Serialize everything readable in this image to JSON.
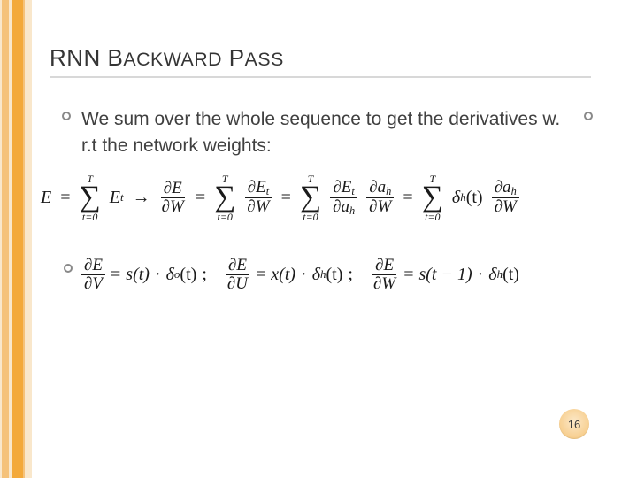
{
  "title_part1": "RNN B",
  "title_part2": "ACKWARD",
  "title_part3": " P",
  "title_part4": "ASS",
  "lead": "We sum over the whole sequence to get the derivatives w. r.t the network weights:",
  "eq": {
    "E": "E",
    "eq": "=",
    "arrow": "→",
    "sum_upper": "T",
    "sum_lower": "t=0",
    "E_t": "E",
    "sub_t": "t",
    "dE_dW_num": "∂E",
    "dE_dW_den": "∂W",
    "dEt_dW_num": "∂E",
    "dEt_dW_num_sub": "t",
    "dEt_dW_den": "∂W",
    "dEt_dah_num": "∂E",
    "dEt_dah_num_sub": "t",
    "dEt_dah_den": "∂a",
    "dEt_dah_den_sub": "h",
    "dah_dW_num": "∂a",
    "dah_dW_num_sub": "h",
    "dah_dW_den": "∂W",
    "delta": "δ",
    "sub_h": "h",
    "open": "(t)",
    "dE_dV_num": "∂E",
    "dE_dV_den": "∂V",
    "s_of_t": "s(t)",
    "dot": "·",
    "delta_o": "δ",
    "sub_o": "o",
    "semicolon": ";",
    "dE_dU_num": "∂E",
    "dE_dU_den": "∂U",
    "x_of_t": "x(t)",
    "s_of_tm1": "s(t − 1)"
  },
  "page_number": "16",
  "colors": {
    "stripe_light": "#f9e7cb",
    "stripe_mid": "#f5c27a",
    "stripe_dark": "#f3a93a",
    "title_underline": "#d8d8d8",
    "bullet_border": "#898989",
    "text_body": "#404040",
    "math_text": "#1a1a1a",
    "badge_center": "#fce8c8",
    "badge_edge": "#f1bf6c"
  }
}
